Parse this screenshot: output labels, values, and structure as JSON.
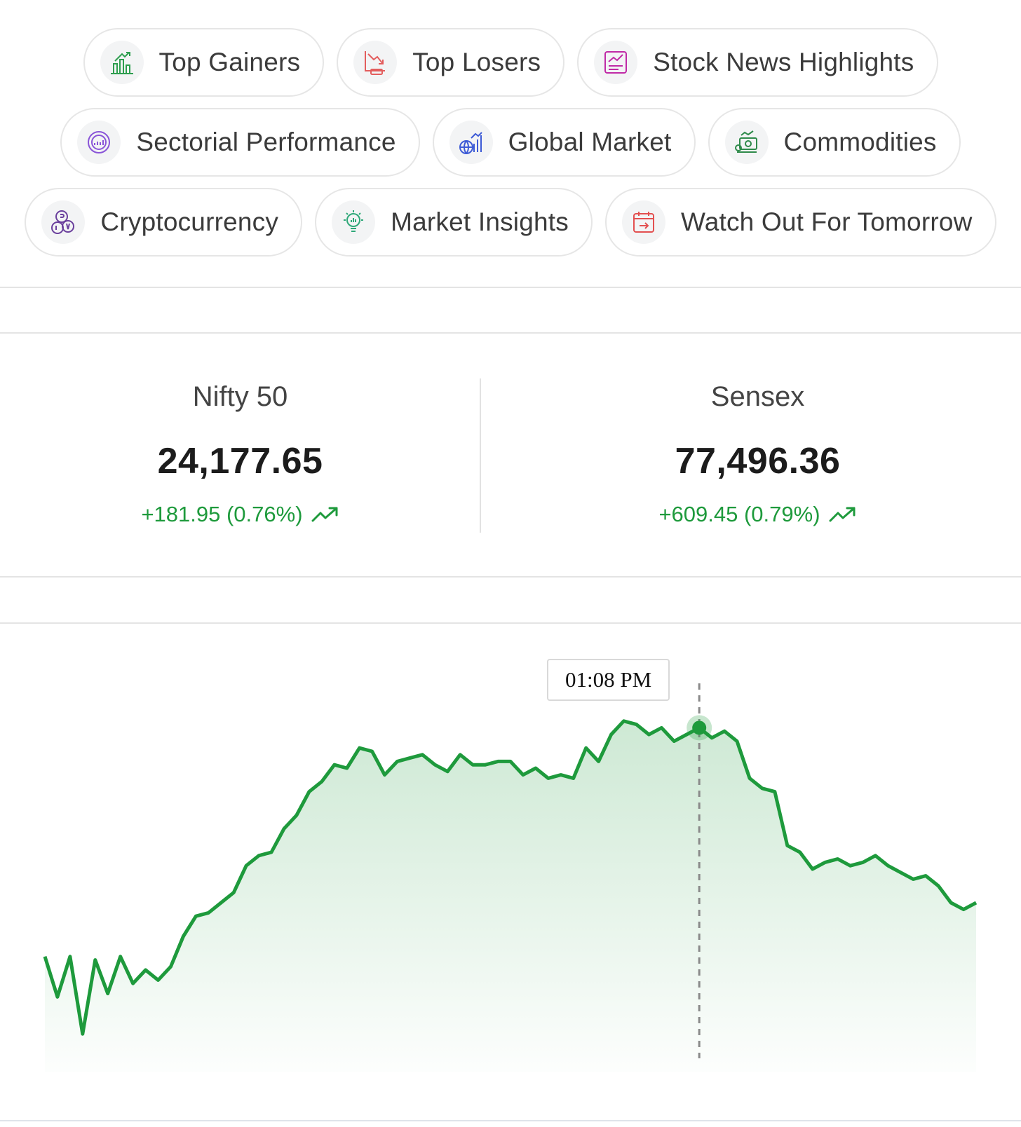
{
  "nav_chips": [
    {
      "label": "Top Gainers",
      "icon": "top-gainers-icon",
      "color": "#2e9e4f"
    },
    {
      "label": "Top Losers",
      "icon": "top-losers-icon",
      "color": "#e35d5d"
    },
    {
      "label": "Stock News Highlights",
      "icon": "stock-news-icon",
      "color": "#c02aa6"
    },
    {
      "label": "Sectorial Performance",
      "icon": "sectorial-performance-icon",
      "color": "#8a55d8"
    },
    {
      "label": "Global Market",
      "icon": "global-market-icon",
      "color": "#3d5bd6"
    },
    {
      "label": "Commodities",
      "icon": "commodities-icon",
      "color": "#2e8a4a"
    },
    {
      "label": "Cryptocurrency",
      "icon": "cryptocurrency-icon",
      "color": "#6a3f9c"
    },
    {
      "label": "Market Insights",
      "icon": "market-insights-icon",
      "color": "#2ea878"
    },
    {
      "label": "Watch Out For Tomorrow",
      "icon": "calendar-icon",
      "color": "#e35050"
    }
  ],
  "indices": [
    {
      "name": "Nifty 50",
      "value": "24,177.65",
      "change": "+181.95 (0.76%)",
      "trend": "trending-up-icon"
    },
    {
      "name": "Sensex",
      "value": "77,496.36",
      "change": "+609.45 (0.79%)",
      "trend": "trending-up-icon"
    }
  ],
  "colors": {
    "positive": "#1e9a3c",
    "chip_border": "#e6e6e6"
  },
  "chart_data": {
    "type": "area",
    "title": "",
    "xlabel": "",
    "ylabel": "",
    "grid": false,
    "tooltip_label": "01:08 PM",
    "highlight_index": 52,
    "color": "#1e9a3c",
    "series": [
      {
        "values": [
          0.24,
          0.12,
          0.24,
          0.01,
          0.23,
          0.13,
          0.24,
          0.16,
          0.2,
          0.17,
          0.21,
          0.3,
          0.36,
          0.37,
          0.4,
          0.43,
          0.51,
          0.54,
          0.55,
          0.62,
          0.66,
          0.73,
          0.76,
          0.81,
          0.8,
          0.86,
          0.85,
          0.78,
          0.82,
          0.83,
          0.84,
          0.81,
          0.79,
          0.84,
          0.81,
          0.81,
          0.82,
          0.82,
          0.78,
          0.8,
          0.77,
          0.78,
          0.77,
          0.86,
          0.82,
          0.9,
          0.94,
          0.93,
          0.9,
          0.92,
          0.88,
          0.9,
          0.92,
          0.89,
          0.91,
          0.88,
          0.77,
          0.74,
          0.73,
          0.57,
          0.55,
          0.5,
          0.52,
          0.53,
          0.51,
          0.52,
          0.54,
          0.51,
          0.49,
          0.47,
          0.48,
          0.45,
          0.4,
          0.38,
          0.4
        ]
      }
    ]
  }
}
